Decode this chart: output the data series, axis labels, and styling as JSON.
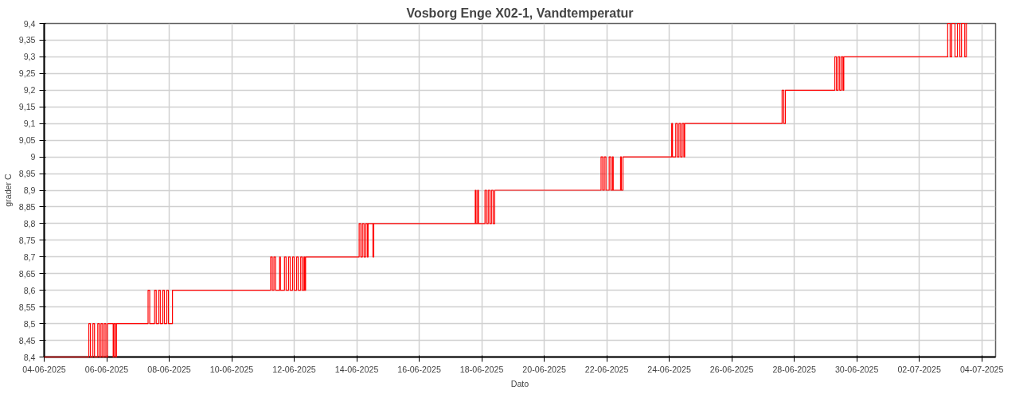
{
  "chart_data": {
    "type": "step",
    "title": "Vosborg Enge X02-1, Vandtemperatur",
    "xlabel": "Dato",
    "ylabel": "grader C",
    "grid": true,
    "line_style": "solid",
    "xlim": [
      "2025-06-04T00:00",
      "2025-07-04T10:36"
    ],
    "ylim": [
      8.4,
      9.4
    ],
    "xticks": [
      {
        "value": "2025-06-04",
        "label": "04-06-2025"
      },
      {
        "value": "2025-06-06",
        "label": "06-06-2025"
      },
      {
        "value": "2025-06-08",
        "label": "08-06-2025"
      },
      {
        "value": "2025-06-10",
        "label": "10-06-2025"
      },
      {
        "value": "2025-06-12",
        "label": "12-06-2025"
      },
      {
        "value": "2025-06-14",
        "label": "14-06-2025"
      },
      {
        "value": "2025-06-16",
        "label": "16-06-2025"
      },
      {
        "value": "2025-06-18",
        "label": "18-06-2025"
      },
      {
        "value": "2025-06-20",
        "label": "20-06-2025"
      },
      {
        "value": "2025-06-22",
        "label": "22-06-2025"
      },
      {
        "value": "2025-06-24",
        "label": "24-06-2025"
      },
      {
        "value": "2025-06-26",
        "label": "26-06-2025"
      },
      {
        "value": "2025-06-28",
        "label": "28-06-2025"
      },
      {
        "value": "2025-06-30",
        "label": "30-06-2025"
      },
      {
        "value": "2025-07-02",
        "label": "02-07-2025"
      },
      {
        "value": "2025-07-04",
        "label": "04-07-2025"
      }
    ],
    "yticks": [
      {
        "value": 8.4,
        "label": "8,4"
      },
      {
        "value": 8.45,
        "label": "8,45"
      },
      {
        "value": 8.5,
        "label": "8,5"
      },
      {
        "value": 8.55,
        "label": "8,55"
      },
      {
        "value": 8.6,
        "label": "8,6"
      },
      {
        "value": 8.65,
        "label": "8,65"
      },
      {
        "value": 8.7,
        "label": "8,7"
      },
      {
        "value": 8.75,
        "label": "8,75"
      },
      {
        "value": 8.8,
        "label": "8,8"
      },
      {
        "value": 8.85,
        "label": "8,85"
      },
      {
        "value": 8.9,
        "label": "8,9"
      },
      {
        "value": 8.95,
        "label": "8,95"
      },
      {
        "value": 9,
        "label": "9"
      },
      {
        "value": 9.05,
        "label": "9,05"
      },
      {
        "value": 9.1,
        "label": "9,1"
      },
      {
        "value": 9.15,
        "label": "9,15"
      },
      {
        "value": 9.2,
        "label": "9,2"
      },
      {
        "value": 9.25,
        "label": "9,25"
      },
      {
        "value": 9.3,
        "label": "9,3"
      },
      {
        "value": 9.35,
        "label": "9,35"
      },
      {
        "value": 9.4,
        "label": "9,4"
      }
    ],
    "series": [
      {
        "color": "#ff0000",
        "x": [
          "2025-06-04T00:00",
          "2025-06-05T10:17",
          "2025-06-05T11:32",
          "2025-06-05T13:24",
          "2025-06-05T14:39",
          "2025-06-05T17:09",
          "2025-06-05T18:23",
          "2025-06-05T19:38",
          "2025-06-05T20:53",
          "2025-06-05T22:08",
          "2025-06-05T23:23",
          "2025-06-06T00:37",
          "2025-06-06T04:59",
          "2025-06-06T05:37",
          "2025-06-06T06:51",
          "2025-06-06T07:29",
          "2025-06-07T07:47",
          "2025-06-07T09:02",
          "2025-06-07T12:47",
          "2025-06-07T14:02",
          "2025-06-07T15:54",
          "2025-06-07T17:09",
          "2025-06-07T19:01",
          "2025-06-07T20:16",
          "2025-06-07T22:08",
          "2025-06-07T23:23",
          "2025-06-08T02:30",
          "2025-06-11T05:55",
          "2025-06-11T07:10",
          "2025-06-11T08:25",
          "2025-06-11T09:40",
          "2025-06-11T12:47",
          "2025-06-11T13:24",
          "2025-06-11T16:31",
          "2025-06-11T17:46",
          "2025-06-11T19:38",
          "2025-06-11T20:53",
          "2025-06-11T22:45",
          "2025-06-12T00:00",
          "2025-06-12T01:52",
          "2025-06-12T03:07",
          "2025-06-12T04:59",
          "2025-06-12T06:14",
          "2025-06-12T07:29",
          "2025-06-12T08:06",
          "2025-06-12T08:44",
          "2025-06-14T01:52",
          "2025-06-14T03:07",
          "2025-06-14T04:22",
          "2025-06-14T05:37",
          "2025-06-14T06:51",
          "2025-06-14T08:06",
          "2025-06-14T08:44",
          "2025-06-14T12:28",
          "2025-06-14T13:05",
          "2025-06-17T19:01",
          "2025-06-17T19:38",
          "2025-06-17T20:53",
          "2025-06-17T21:30",
          "2025-06-18T02:30",
          "2025-06-18T03:44",
          "2025-06-18T04:59",
          "2025-06-18T06:14",
          "2025-06-18T07:29",
          "2025-06-18T08:44",
          "2025-06-18T09:58",
          "2025-06-21T19:38",
          "2025-06-21T20:53",
          "2025-06-21T22:08",
          "2025-06-21T23:23",
          "2025-06-22T01:52",
          "2025-06-22T03:07",
          "2025-06-22T04:22",
          "2025-06-22T04:59",
          "2025-06-22T10:36",
          "2025-06-22T11:13",
          "2025-06-22T12:28",
          "2025-06-24T01:52",
          "2025-06-24T02:30",
          "2025-06-24T04:59",
          "2025-06-24T06:14",
          "2025-06-24T07:29",
          "2025-06-24T08:44",
          "2025-06-24T09:58",
          "2025-06-24T11:13",
          "2025-06-24T11:51",
          "2025-06-24T13:05",
          "2025-06-27T14:39",
          "2025-06-27T15:54",
          "2025-06-27T17:09",
          "2025-06-29T07:10",
          "2025-06-29T08:25",
          "2025-06-29T09:40",
          "2025-06-29T10:55",
          "2025-06-29T12:09",
          "2025-06-29T13:24",
          "2025-06-29T14:02",
          "2025-07-02T21:49",
          "2025-07-02T23:41",
          "2025-07-03T00:56",
          "2025-07-03T03:26",
          "2025-07-03T05:18",
          "2025-07-03T07:10",
          "2025-07-03T08:25",
          "2025-07-03T10:55",
          "2025-07-03T12:09",
          "2025-07-03T12:47"
        ],
        "values": [
          8.4,
          8.5,
          8.4,
          8.5,
          8.4,
          8.5,
          8.4,
          8.5,
          8.4,
          8.5,
          8.4,
          8.5,
          8.4,
          8.5,
          8.4,
          8.5,
          8.6,
          8.5,
          8.6,
          8.5,
          8.6,
          8.5,
          8.6,
          8.5,
          8.6,
          8.5,
          8.6,
          8.7,
          8.6,
          8.7,
          8.6,
          8.7,
          8.6,
          8.7,
          8.6,
          8.7,
          8.6,
          8.7,
          8.6,
          8.7,
          8.6,
          8.7,
          8.6,
          8.7,
          8.6,
          8.7,
          8.8,
          8.7,
          8.8,
          8.7,
          8.8,
          8.7,
          8.8,
          8.7,
          8.8,
          8.9,
          8.8,
          8.9,
          8.8,
          8.9,
          8.8,
          8.9,
          8.8,
          8.9,
          8.8,
          8.9,
          9.0,
          8.9,
          9.0,
          8.9,
          9.0,
          8.9,
          9.0,
          8.9,
          9.0,
          8.9,
          9.0,
          9.1,
          9.0,
          9.1,
          9.0,
          9.1,
          9.0,
          9.1,
          9.0,
          9.1,
          9.1,
          9.2,
          9.1,
          9.2,
          9.3,
          9.2,
          9.3,
          9.2,
          9.3,
          9.2,
          9.3,
          9.4,
          9.3,
          9.4,
          9.3,
          9.4,
          9.3,
          9.4,
          9.3,
          9.4,
          9.4
        ]
      }
    ]
  }
}
